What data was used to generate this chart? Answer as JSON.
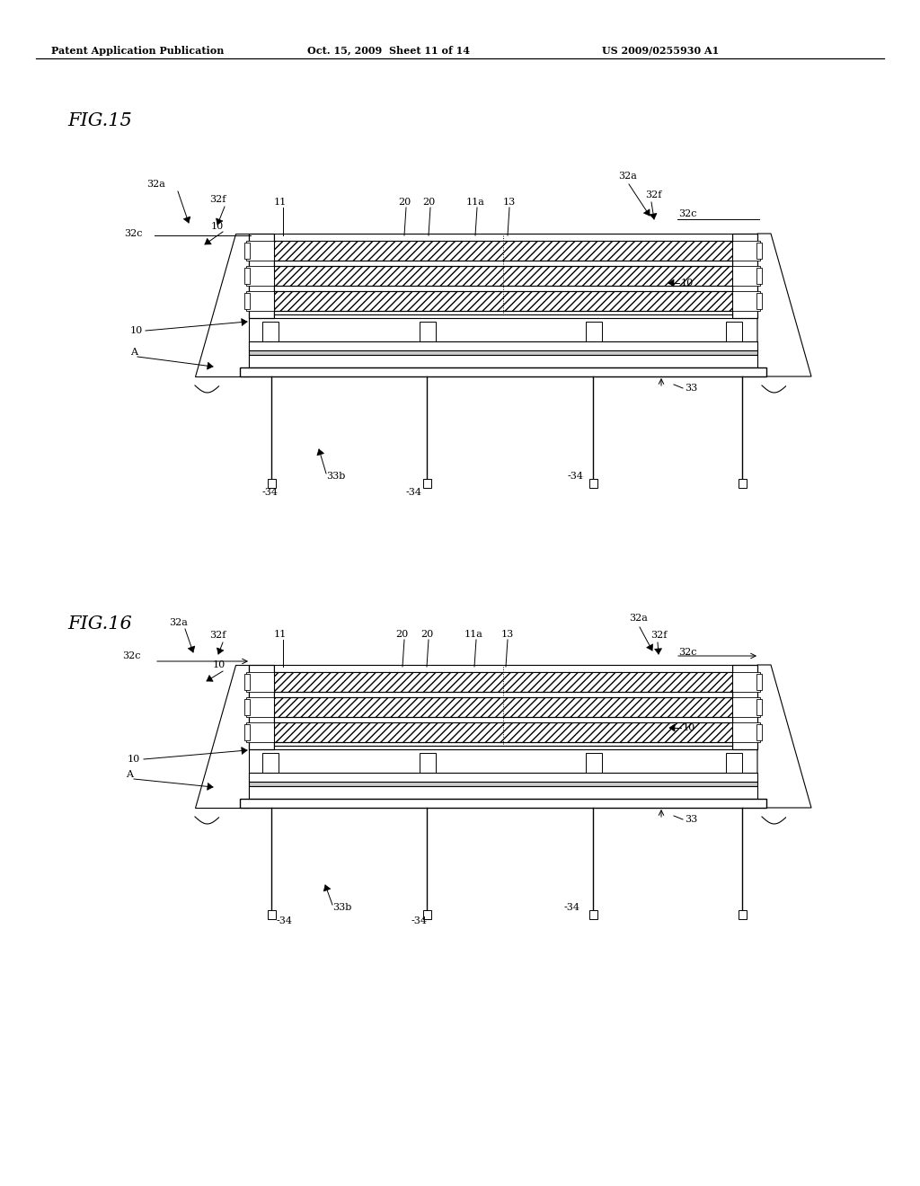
{
  "bg_color": "#ffffff",
  "header_left": "Patent Application Publication",
  "header_center": "Oct. 15, 2009  Sheet 11 of 14",
  "header_right": "US 2009/0255930 A1",
  "fig15_title": "FIG.15",
  "fig16_title": "FIG.16",
  "figsize": [
    10.24,
    13.2
  ],
  "dpi": 100
}
